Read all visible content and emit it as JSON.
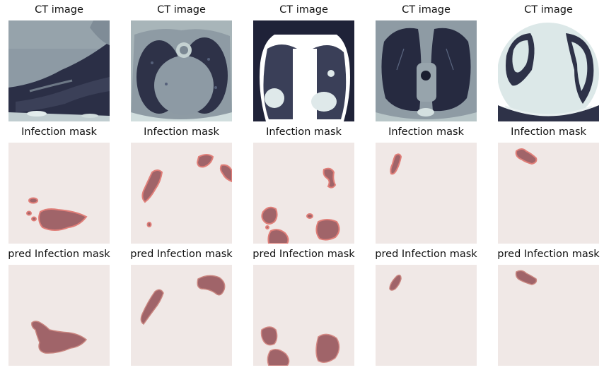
{
  "row_titles": [
    "CT image",
    "Infection mask",
    "pred Infection mask"
  ],
  "colors": {
    "mask_background": "#f0e8e6",
    "lesion_fill": "#a06469",
    "lesion_edge": "#e07e78",
    "ct_dark": "#2b2f45",
    "ct_mid": "#8e9ba4",
    "ct_light": "#d8e6e6"
  },
  "columns": [
    {
      "ct": "heart-lower",
      "mask": "col1",
      "pred": "col1"
    },
    {
      "ct": "chest-aorta",
      "mask": "col2",
      "pred": "col2"
    },
    {
      "ct": "bright-lungs",
      "mask": "col3",
      "pred": "col3"
    },
    {
      "ct": "trachea-level",
      "mask": "col4",
      "pred": "col4"
    },
    {
      "ct": "bright-heart",
      "mask": "col5",
      "pred": "col5"
    }
  ]
}
